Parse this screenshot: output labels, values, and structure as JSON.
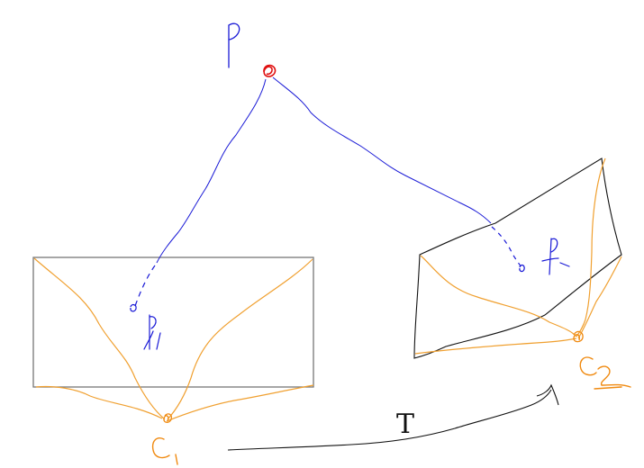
{
  "diagram": {
    "labels": {
      "transform": "T"
    },
    "colors": {
      "ray": "#1a1ad6",
      "point_3d": "#e01010",
      "camera": "#f08a10",
      "frame": "#777777",
      "dark": "#111111"
    }
  }
}
